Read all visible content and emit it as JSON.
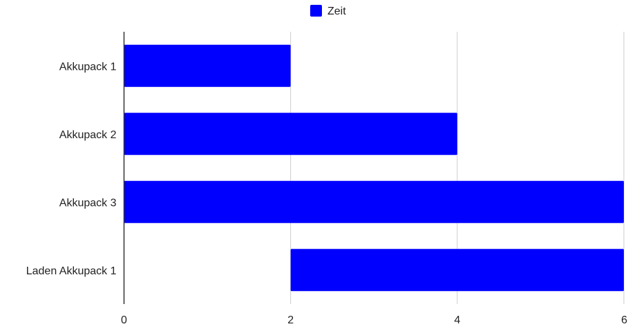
{
  "chart_data": {
    "type": "bar",
    "orientation": "horizontal",
    "categories": [
      "Akkupack 1",
      "Akkupack 2",
      "Akkupack 3",
      "Laden Akkupack 1"
    ],
    "series": [
      {
        "name": "Zeit",
        "color": "#0000ff",
        "ranges": [
          [
            0,
            2
          ],
          [
            0,
            4
          ],
          [
            0,
            6
          ],
          [
            2,
            6
          ]
        ]
      }
    ],
    "xlim": [
      0,
      6
    ],
    "xticks": [
      0,
      2,
      4,
      6
    ],
    "grid": true,
    "legend_position": "top-center",
    "title": "",
    "xlabel": "",
    "ylabel": ""
  }
}
